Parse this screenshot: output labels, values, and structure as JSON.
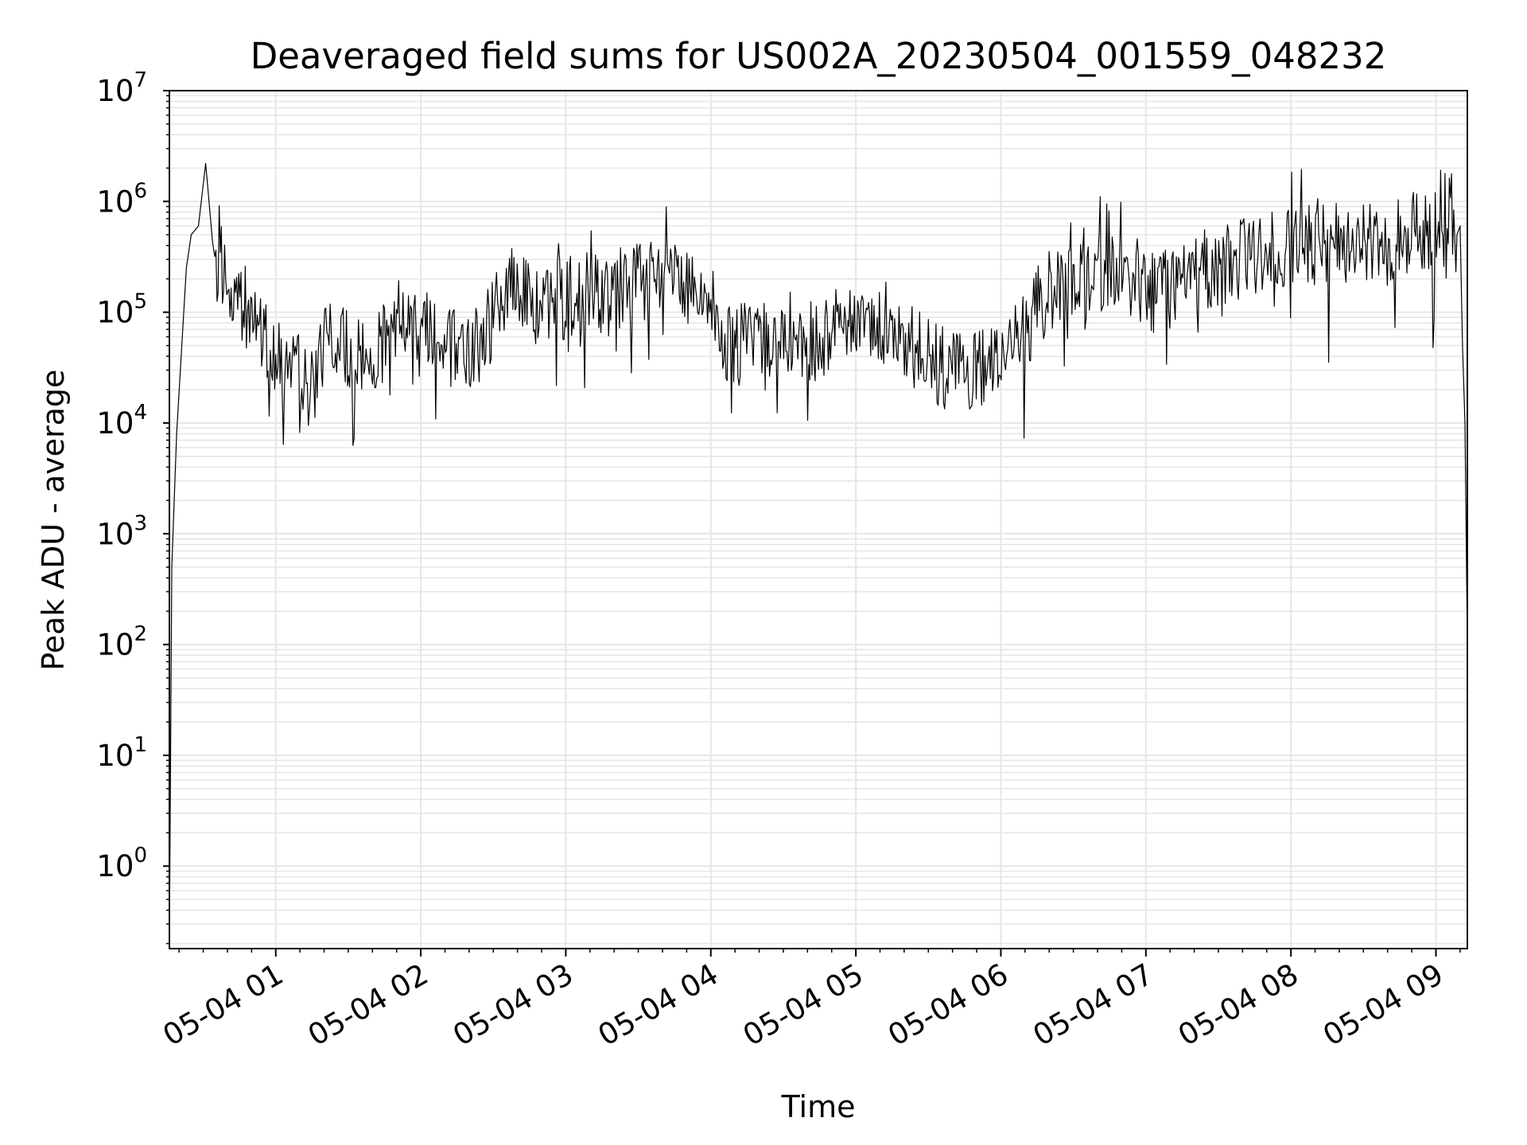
{
  "chart_data": {
    "type": "line",
    "title": "Deaveraged field sums for US002A_20230504_001559_048232",
    "xlabel": "Time",
    "ylabel": "Peak ADU - average",
    "x_scale": "time",
    "y_scale": "log",
    "xlim": [
      "2023-05-04 00:16",
      "2023-05-04 09:13"
    ],
    "ylim": [
      0.18,
      10000000
    ],
    "x_ticks": [
      "05-04 01",
      "05-04 02",
      "05-04 03",
      "05-04 04",
      "05-04 05",
      "05-04 06",
      "05-04 07",
      "05-04 08",
      "05-04 09"
    ],
    "y_ticks": [
      {
        "base": "10",
        "exp": "0"
      },
      {
        "base": "10",
        "exp": "1"
      },
      {
        "base": "10",
        "exp": "2"
      },
      {
        "base": "10",
        "exp": "3"
      },
      {
        "base": "10",
        "exp": "4"
      },
      {
        "base": "10",
        "exp": "5"
      },
      {
        "base": "10",
        "exp": "6"
      },
      {
        "base": "10",
        "exp": "7"
      }
    ],
    "grid": true,
    "legend": false,
    "line_color": "#000000",
    "grid_color": "#e6e6e6",
    "series": [
      {
        "x": [
          "2023-05-04 00:16",
          "2023-05-04 00:17",
          "2023-05-04 00:19",
          "2023-05-04 00:21",
          "2023-05-04 00:23",
          "2023-05-04 00:25",
          "2023-05-04 00:28",
          "2023-05-04 00:31",
          "2023-05-04 00:32",
          "2023-05-04 00:33",
          "2023-05-04 00:34",
          "2023-05-04 00:35",
          "2023-05-04 00:37",
          "2023-05-04 00:40",
          "2023-05-04 00:45",
          "2023-05-04 00:48",
          "2023-05-04 00:52",
          "2023-05-04 00:56",
          "2023-05-04 01:00",
          "2023-05-04 01:05",
          "2023-05-04 01:10",
          "2023-05-04 01:14",
          "2023-05-04 01:20",
          "2023-05-04 01:25",
          "2023-05-04 01:30",
          "2023-05-04 01:35",
          "2023-05-04 01:40",
          "2023-05-04 01:45",
          "2023-05-04 01:50",
          "2023-05-04 01:55",
          "2023-05-04 02:00",
          "2023-05-04 02:05",
          "2023-05-04 02:10",
          "2023-05-04 02:15",
          "2023-05-04 02:20",
          "2023-05-04 02:25",
          "2023-05-04 02:30",
          "2023-05-04 02:35",
          "2023-05-04 02:40",
          "2023-05-04 02:45",
          "2023-05-04 02:50",
          "2023-05-04 02:55",
          "2023-05-04 03:00",
          "2023-05-04 03:10",
          "2023-05-04 03:20",
          "2023-05-04 03:30",
          "2023-05-04 03:40",
          "2023-05-04 03:50",
          "2023-05-04 04:00",
          "2023-05-04 04:05",
          "2023-05-04 04:10",
          "2023-05-04 04:15",
          "2023-05-04 04:20",
          "2023-05-04 04:30",
          "2023-05-04 04:40",
          "2023-05-04 04:50",
          "2023-05-04 05:00",
          "2023-05-04 05:10",
          "2023-05-04 05:20",
          "2023-05-04 05:30",
          "2023-05-04 05:40",
          "2023-05-04 05:50",
          "2023-05-04 06:00",
          "2023-05-04 06:10",
          "2023-05-04 06:20",
          "2023-05-04 06:30",
          "2023-05-04 06:40",
          "2023-05-04 06:50",
          "2023-05-04 07:00",
          "2023-05-04 07:15",
          "2023-05-04 07:30",
          "2023-05-04 07:45",
          "2023-05-04 08:00",
          "2023-05-04 08:15",
          "2023-05-04 08:30",
          "2023-05-04 08:40",
          "2023-05-04 08:50",
          "2023-05-04 08:55",
          "2023-05-04 09:00",
          "2023-05-04 09:03",
          "2023-05-04 09:06",
          "2023-05-04 09:08",
          "2023-05-04 09:10",
          "2023-05-04 09:11",
          "2023-05-04 09:12",
          "2023-05-04 09:13"
        ],
        "y": [
          0.2,
          500,
          8000,
          45000,
          250000,
          500000,
          600000,
          2200000,
          4500000,
          700000,
          400000,
          300000,
          250000,
          220000,
          150000,
          100000,
          80000,
          60000,
          50000,
          40000,
          30000,
          20000,
          50000,
          60000,
          50000,
          40000,
          45000,
          60000,
          80000,
          90000,
          100000,
          80000,
          60000,
          50000,
          50000,
          60000,
          100000,
          150000,
          200000,
          150000,
          120000,
          130000,
          150000,
          160000,
          180000,
          200000,
          220000,
          200000,
          150000,
          60000,
          50000,
          60000,
          70000,
          60000,
          50000,
          80000,
          100000,
          80000,
          60000,
          40000,
          30000,
          30000,
          40000,
          80000,
          150000,
          200000,
          250000,
          200000,
          150000,
          200000,
          300000,
          350000,
          400000,
          450000,
          500000,
          450000,
          600000,
          500000,
          700000,
          1100000,
          900000,
          800000,
          600000,
          50000,
          10000,
          100
        ]
      }
    ]
  }
}
